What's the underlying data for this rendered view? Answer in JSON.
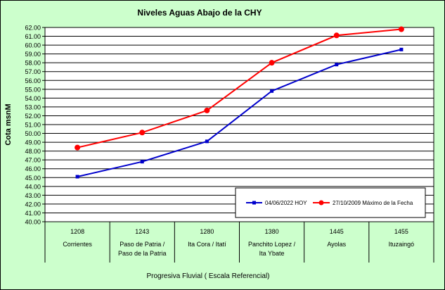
{
  "chart_data": {
    "type": "line",
    "title": "Niveles Aguas Abajo de la CHY",
    "ylabel": "Cota msnM",
    "xlabel": "Progresiva Fluvial ( Escala Referencial)",
    "ylim": [
      40.0,
      62.0
    ],
    "ytick_step": 1.0,
    "grid": true,
    "legend_position": "bottom-right",
    "categories": [
      {
        "code": "1208",
        "lines": [
          "Corrientes"
        ]
      },
      {
        "code": "1243",
        "lines": [
          "Paso de Patria /",
          "Paso de la Patria"
        ]
      },
      {
        "code": "1280",
        "lines": [
          "Ita Cora / Itatí"
        ]
      },
      {
        "code": "1380",
        "lines": [
          "Panchito Lopez /",
          "Ita Ybate"
        ]
      },
      {
        "code": "1445",
        "lines": [
          "Ayolas"
        ]
      },
      {
        "code": "1455",
        "lines": [
          "Ituzaingó"
        ]
      }
    ],
    "series": [
      {
        "name": "04/06/2022  HOY",
        "color": "#0000cc",
        "marker": "square",
        "values": [
          45.1,
          46.8,
          49.1,
          54.8,
          57.8,
          59.5
        ]
      },
      {
        "name": "27/10/2009  Máximo de la Fecha",
        "color": "#ff0000",
        "marker": "circle",
        "values": [
          48.4,
          50.1,
          52.6,
          58.0,
          61.1,
          61.8
        ]
      }
    ]
  }
}
